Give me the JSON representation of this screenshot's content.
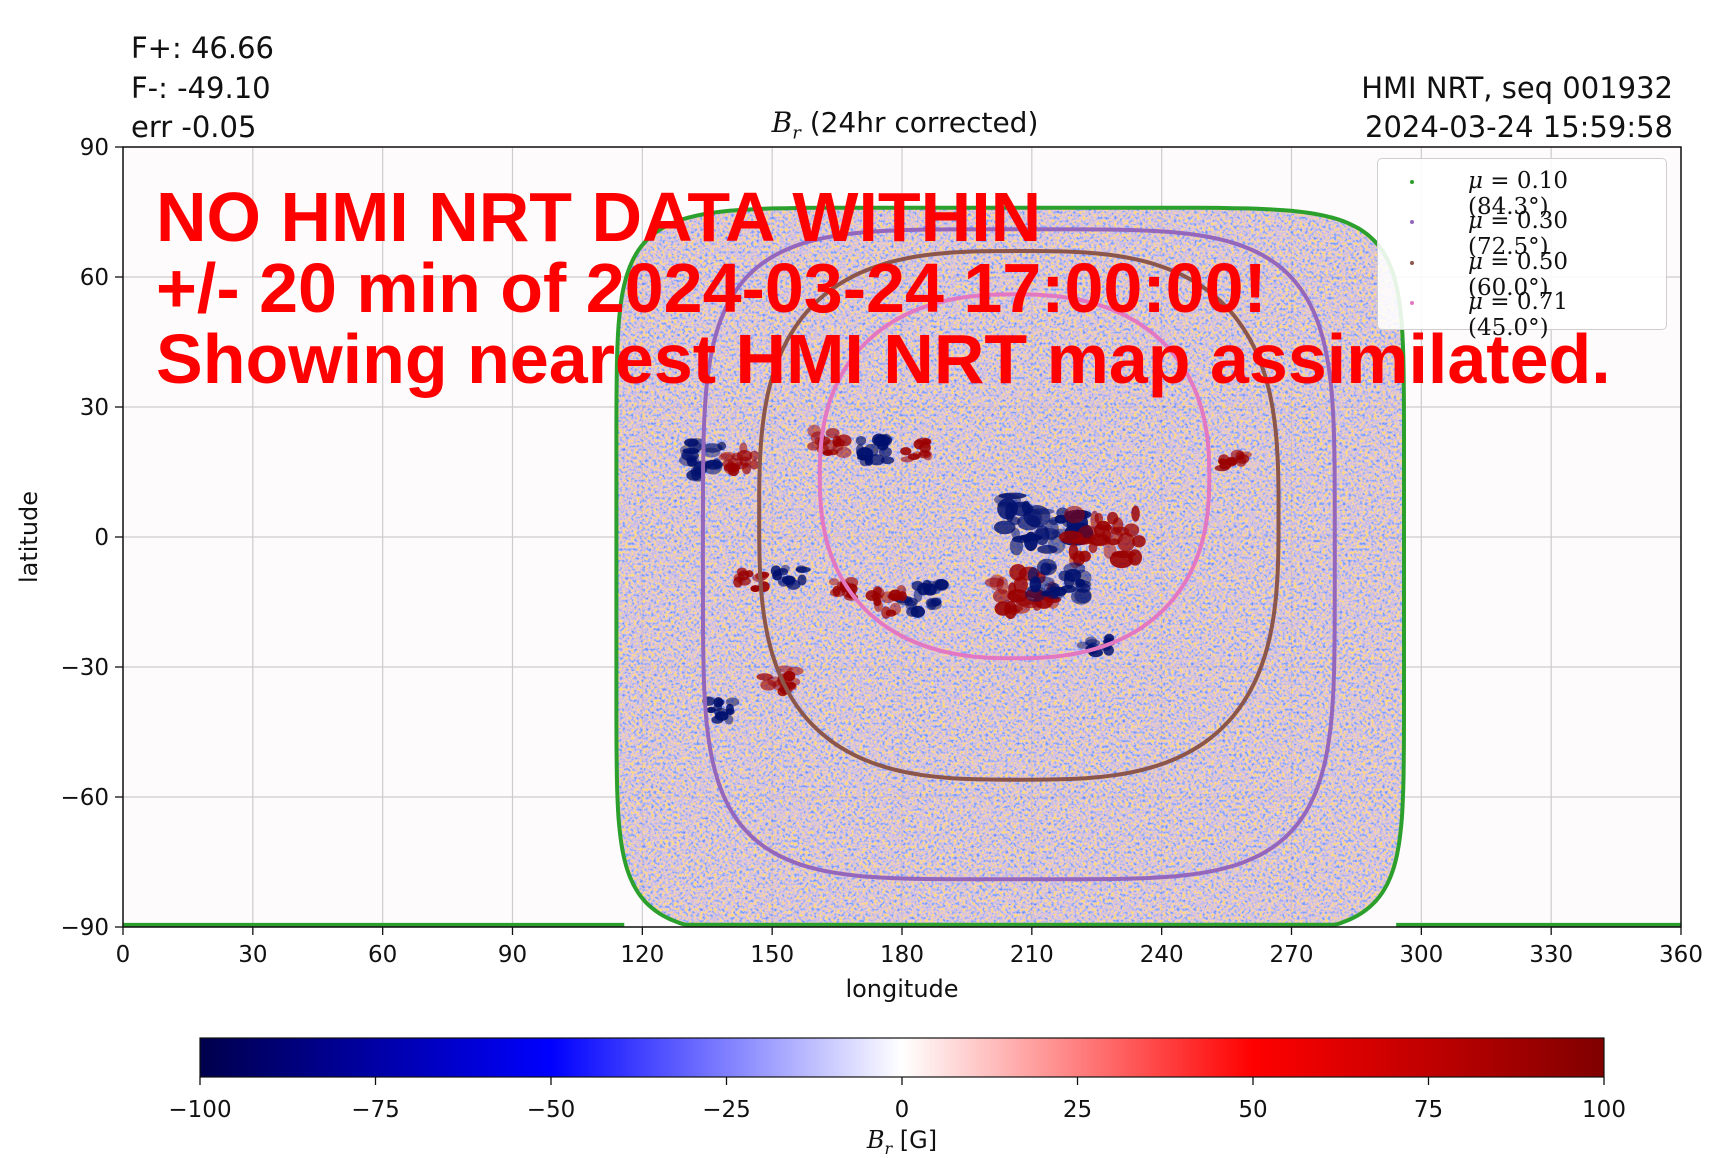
{
  "stats": {
    "fplus": "F+: 46.66",
    "fminus": "F-: -49.10",
    "err": "err -0.05"
  },
  "meta": {
    "source": "HMI NRT, seq 001932",
    "timestamp": "2024-03-24 15:59:58"
  },
  "banner": {
    "line1": "NO HMI NRT DATA WITHIN",
    "line2": "+/- 20 min of 2024-03-24 17:00:00!",
    "line3": "Showing nearest HMI NRT map assimilated."
  },
  "colors": {
    "banner": "#ff0000",
    "grid": "#cccccc",
    "limb": "#3a9a3a"
  },
  "chart_data": {
    "type": "heatmap",
    "title": "B_r (24hr corrected)",
    "title_var": "B",
    "title_sub": "r",
    "title_rest": " (24hr corrected)",
    "xlabel": "longitude",
    "ylabel": "latitude",
    "xlim": [
      0,
      360
    ],
    "ylim": [
      -90,
      90
    ],
    "x_ticks": [
      "0",
      "30",
      "60",
      "90",
      "120",
      "150",
      "180",
      "210",
      "240",
      "270",
      "300",
      "330",
      "360"
    ],
    "y_ticks": [
      "90",
      "60",
      "30",
      "0",
      "−30",
      "−60",
      "−90"
    ],
    "grid": true,
    "legend_placement": "top-right",
    "series": [
      {
        "name": "μ = 0.10 (84.3°)",
        "color": "#2ca02c",
        "lon_center": 205,
        "lat_center": -8,
        "lon_half": 91,
        "lat_half": 84,
        "power": 8
      },
      {
        "name": "μ = 0.30 (72.5°)",
        "color": "#9467bd",
        "lon_center": 207,
        "lat_center": -4,
        "lon_half": 73,
        "lat_half": 75,
        "power": 4.5
      },
      {
        "name": "μ = 0.50 (60.0°)",
        "color": "#8c564b",
        "lon_center": 207,
        "lat_center": 5,
        "lon_half": 60,
        "lat_half": 61,
        "power": 3
      },
      {
        "name": "μ = 0.71 (45.0°)",
        "color": "#e377c2",
        "lon_center": 206,
        "lat_center": 14,
        "lon_half": 45,
        "lat_half": 42,
        "power": 2.4
      }
    ],
    "legend_labels": [
      {
        "sym": "μ",
        "rest": " = 0.10 (84.3°)"
      },
      {
        "sym": "μ",
        "rest": " = 0.30 (72.5°)"
      },
      {
        "sym": "μ",
        "rest": " = 0.50 (60.0°)"
      },
      {
        "sym": "μ",
        "rest": " = 0.71 (45.0°)"
      }
    ],
    "active_regions": [
      {
        "lon": 213,
        "lat": 3,
        "sign": "negative",
        "size": 12
      },
      {
        "lon": 227,
        "lat": 0,
        "sign": "positive",
        "size": 10
      },
      {
        "lon": 208,
        "lat": -13,
        "sign": "positive",
        "size": 9
      },
      {
        "lon": 216,
        "lat": -11,
        "sign": "negative",
        "size": 8
      },
      {
        "lon": 185,
        "lat": -14,
        "sign": "negative",
        "size": 6
      },
      {
        "lon": 177,
        "lat": -15,
        "sign": "positive",
        "size": 5
      },
      {
        "lon": 133,
        "lat": 18,
        "sign": "negative",
        "size": 7
      },
      {
        "lon": 142,
        "lat": 18,
        "sign": "positive",
        "size": 5
      },
      {
        "lon": 163,
        "lat": 22,
        "sign": "positive",
        "size": 5
      },
      {
        "lon": 173,
        "lat": 20,
        "sign": "negative",
        "size": 5
      },
      {
        "lon": 183,
        "lat": 20,
        "sign": "positive",
        "size": 4
      },
      {
        "lon": 166,
        "lat": -12,
        "sign": "positive",
        "size": 4
      },
      {
        "lon": 154,
        "lat": -9,
        "sign": "negative",
        "size": 4
      },
      {
        "lon": 145,
        "lat": -10,
        "sign": "positive",
        "size": 4
      },
      {
        "lon": 257,
        "lat": 18,
        "sign": "positive",
        "size": 4
      },
      {
        "lon": 152,
        "lat": -33,
        "sign": "positive",
        "size": 5
      },
      {
        "lon": 138,
        "lat": -40,
        "sign": "negative",
        "size": 4
      },
      {
        "lon": 225,
        "lat": -25,
        "sign": "negative",
        "size": 4
      }
    ],
    "colorbar": {
      "label": "B_r [G]",
      "label_var": "B",
      "label_sub": "r",
      "label_rest": " [G]",
      "min": -100,
      "max": 100,
      "ticks": [
        "−100",
        "−75",
        "−50",
        "−25",
        "0",
        "25",
        "50",
        "75",
        "100"
      ],
      "colormap": "seismic"
    }
  }
}
